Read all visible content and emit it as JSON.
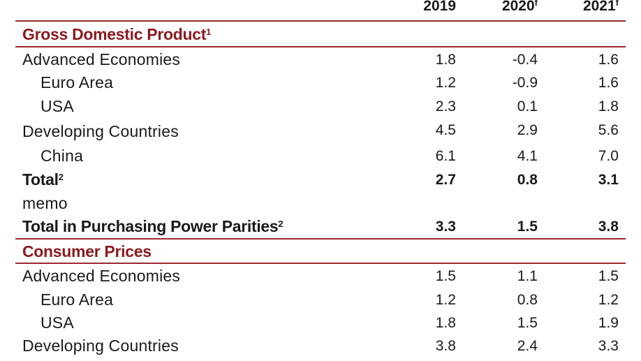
{
  "header": {
    "years": [
      "2019",
      "2020",
      "2021"
    ],
    "year_marks": [
      "",
      "f",
      "f"
    ]
  },
  "gdp": {
    "title": "Gross Domestic Product",
    "title_note": "1",
    "rows": [
      {
        "label": "Advanced Economies",
        "v2019": "1.8",
        "v2020": "-0.4",
        "v2021": "1.6"
      },
      {
        "label": "Euro Area",
        "v2019": "1.2",
        "v2020": "-0.9",
        "v2021": "1.6"
      },
      {
        "label": "USA",
        "v2019": "2.3",
        "v2020": "0.1",
        "v2021": "1.8"
      },
      {
        "label": "Developing Countries",
        "v2019": "4.5",
        "v2020": "2.9",
        "v2021": "5.6"
      },
      {
        "label": "China",
        "v2019": "6.1",
        "v2020": "4.1",
        "v2021": "7.0"
      }
    ],
    "total": {
      "label": "Total",
      "note": "2",
      "v2019": "2.7",
      "v2020": "0.8",
      "v2021": "3.1"
    },
    "memo_label": "memo",
    "ppp": {
      "label": "Total in Purchasing Power Parities",
      "note": "2",
      "v2019": "3.3",
      "v2020": "1.5",
      "v2021": "3.8"
    }
  },
  "cpi": {
    "title": "Consumer Prices",
    "rows": [
      {
        "label": "Advanced Economies",
        "v2019": "1.5",
        "v2020": "1.1",
        "v2021": "1.5"
      },
      {
        "label": "Euro Area",
        "v2019": "1.2",
        "v2020": "0.8",
        "v2021": "1.2"
      },
      {
        "label": "USA",
        "v2019": "1.8",
        "v2020": "1.5",
        "v2021": "1.9"
      },
      {
        "label": "Developing Countries",
        "v2019": "3.8",
        "v2020": "2.4",
        "v2021": "3.3"
      }
    ]
  },
  "colors": {
    "accent": "#8b1a1f",
    "rule": "#9b2a30",
    "text": "#1a1a1a"
  }
}
